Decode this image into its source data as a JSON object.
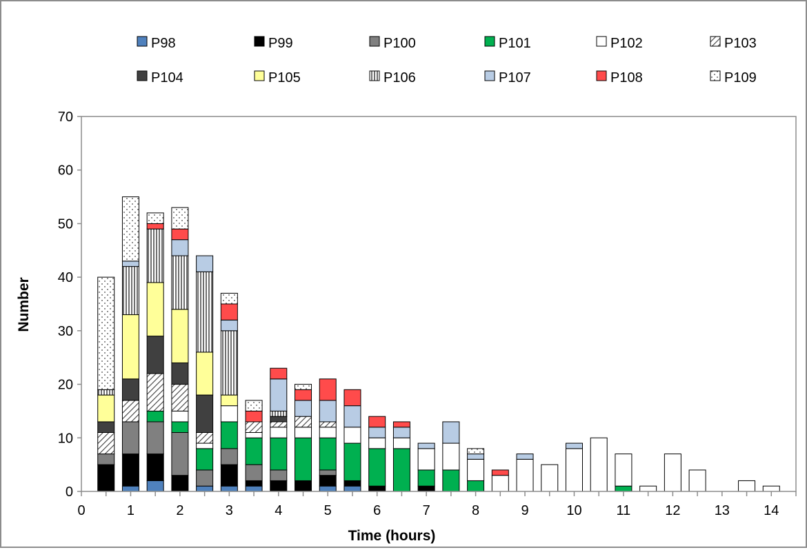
{
  "chart_data": {
    "type": "bar",
    "stacked": true,
    "xlabel": "Time (hours)",
    "ylabel": "Number",
    "ylim": [
      0,
      70
    ],
    "yticks": [
      0,
      10,
      20,
      30,
      40,
      50,
      60,
      70
    ],
    "xlim": [
      0,
      14.5
    ],
    "xticks": [
      0,
      1,
      2,
      3,
      4,
      5,
      6,
      7,
      8,
      9,
      10,
      11,
      12,
      13,
      14
    ],
    "x": [
      0.5,
      1,
      1.5,
      2,
      2.5,
      3,
      3.5,
      4,
      4.5,
      5,
      5.5,
      6,
      6.5,
      7,
      7.5,
      8,
      8.5,
      9,
      9.5,
      10,
      10.5,
      11,
      11.5,
      12,
      12.5,
      13,
      13.5,
      14
    ],
    "legend_position": "top",
    "grid": false,
    "series": [
      {
        "name": "P98",
        "color": "#4f81bd",
        "pattern": "solid",
        "values": [
          0,
          1,
          2,
          0,
          1,
          1,
          1,
          0,
          0,
          1,
          1,
          0,
          0,
          0,
          0,
          0,
          0,
          0,
          0,
          0,
          0,
          0,
          0,
          0,
          0,
          0,
          0,
          0
        ]
      },
      {
        "name": "P99",
        "color": "#000000",
        "pattern": "solid",
        "values": [
          5,
          6,
          5,
          3,
          0,
          4,
          1,
          2,
          2,
          2,
          1,
          1,
          0,
          1,
          0,
          0,
          0,
          0,
          0,
          0,
          0,
          0,
          0,
          0,
          0,
          0,
          0,
          0
        ]
      },
      {
        "name": "P100",
        "color": "#808080",
        "pattern": "solid",
        "values": [
          2,
          6,
          6,
          8,
          3,
          3,
          3,
          2,
          0,
          1,
          0,
          0,
          0,
          0,
          0,
          0,
          0,
          0,
          0,
          0,
          0,
          0,
          0,
          0,
          0,
          0,
          0,
          0
        ]
      },
      {
        "name": "P101",
        "color": "#00b050",
        "pattern": "solid",
        "values": [
          0,
          0,
          2,
          2,
          4,
          5,
          5,
          6,
          8,
          6,
          7,
          7,
          8,
          3,
          4,
          2,
          0,
          0,
          0,
          0,
          0,
          1,
          0,
          0,
          0,
          0,
          0,
          0
        ]
      },
      {
        "name": "P102",
        "color": "#ffffff",
        "pattern": "solid",
        "values": [
          0,
          0,
          0,
          2,
          1,
          3,
          1,
          2,
          2,
          2,
          3,
          2,
          2,
          4,
          5,
          4,
          3,
          6,
          5,
          8,
          10,
          6,
          1,
          7,
          4,
          0,
          2,
          1
        ]
      },
      {
        "name": "P103",
        "color": "#ffffff",
        "pattern": "diag",
        "values": [
          4,
          4,
          7,
          5,
          2,
          0,
          2,
          1,
          2,
          1,
          0,
          0,
          0,
          0,
          0,
          0,
          0,
          0,
          0,
          0,
          0,
          0,
          0,
          0,
          0,
          0,
          0,
          0
        ]
      },
      {
        "name": "P104",
        "color": "#404040",
        "pattern": "solid",
        "values": [
          2,
          4,
          7,
          4,
          7,
          0,
          0,
          1,
          0,
          0,
          0,
          0,
          0,
          0,
          0,
          0,
          0,
          0,
          0,
          0,
          0,
          0,
          0,
          0,
          0,
          0,
          0,
          0
        ]
      },
      {
        "name": "P105",
        "color": "#ffff99",
        "pattern": "solid",
        "values": [
          5,
          12,
          10,
          10,
          8,
          2,
          0,
          0,
          0,
          0,
          0,
          0,
          0,
          0,
          0,
          0,
          0,
          0,
          0,
          0,
          0,
          0,
          0,
          0,
          0,
          0,
          0,
          0
        ]
      },
      {
        "name": "P106",
        "color": "#ffffff",
        "pattern": "vline",
        "values": [
          1,
          9,
          10,
          10,
          15,
          12,
          0,
          1,
          0,
          0,
          0,
          0,
          0,
          0,
          0,
          0,
          0,
          0,
          0,
          0,
          0,
          0,
          0,
          0,
          0,
          0,
          0,
          0
        ]
      },
      {
        "name": "P107",
        "color": "#b8cce4",
        "pattern": "solid",
        "values": [
          0,
          1,
          0,
          3,
          3,
          2,
          0,
          6,
          3,
          4,
          4,
          2,
          2,
          1,
          4,
          1,
          0,
          1,
          0,
          1,
          0,
          0,
          0,
          0,
          0,
          0,
          0,
          0
        ]
      },
      {
        "name": "P108",
        "color": "#ff4b4b",
        "pattern": "solid",
        "values": [
          0,
          0,
          1,
          2,
          0,
          3,
          2,
          2,
          2,
          4,
          3,
          2,
          1,
          0,
          0,
          0,
          1,
          0,
          0,
          0,
          0,
          0,
          0,
          0,
          0,
          0,
          0,
          0
        ]
      },
      {
        "name": "P109",
        "color": "#ffffff",
        "pattern": "dots",
        "values": [
          21,
          12,
          2,
          4,
          0,
          2,
          2,
          0,
          1,
          0,
          0,
          0,
          0,
          0,
          0,
          1,
          0,
          0,
          0,
          0,
          0,
          0,
          0,
          0,
          0,
          0,
          0,
          0
        ]
      }
    ]
  }
}
